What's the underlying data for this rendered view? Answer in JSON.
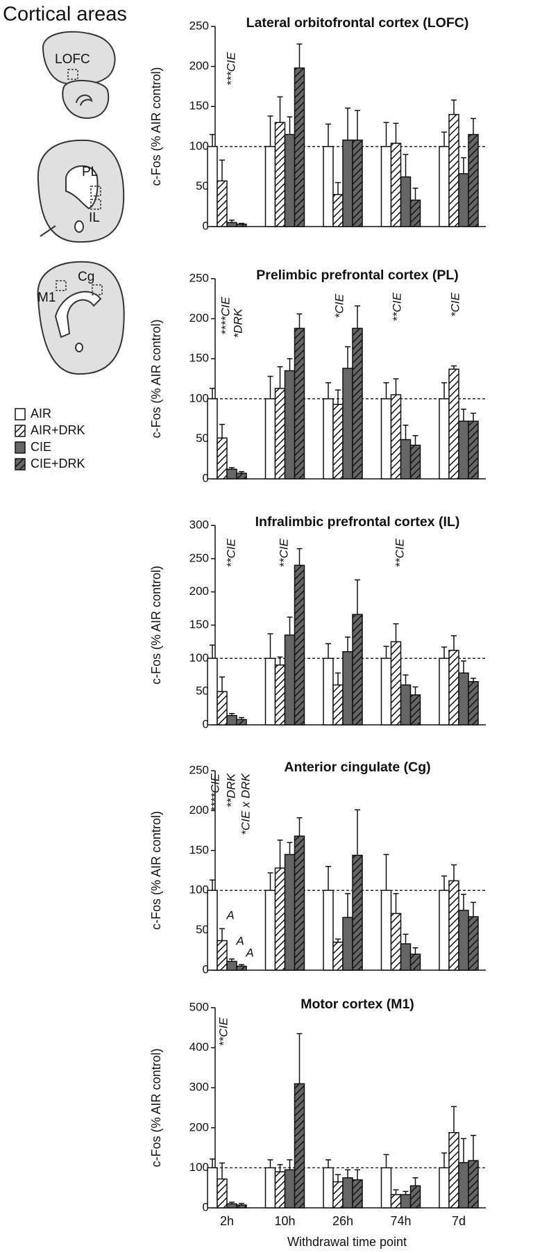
{
  "title": "Cortical areas",
  "diagram_labels": [
    "LOFC",
    "PL",
    "IL",
    "Cg",
    "M1"
  ],
  "chart_data": [
    {
      "type": "bar",
      "title": "Lateral orbitofrontal cortex (LOFC)",
      "ylabel": "c-Fos (% AIR control)",
      "ylim": [
        0,
        250
      ],
      "yticks": [
        0,
        50,
        100,
        150,
        200,
        250
      ],
      "refline": 100,
      "series": [
        {
          "name": "AIR",
          "color": "#ffffff",
          "hatch": false,
          "values": [
            100,
            100,
            100,
            100,
            100
          ],
          "errors": [
            15,
            38,
            28,
            30,
            18
          ]
        },
        {
          "name": "AIR+DRK",
          "color": "#ffffff",
          "hatch": true,
          "values": [
            57,
            130,
            40,
            104,
            140
          ],
          "errors": [
            26,
            32,
            15,
            25,
            18
          ]
        },
        {
          "name": "CIE",
          "color": "#666666",
          "hatch": false,
          "values": [
            5,
            115,
            108,
            62,
            66
          ],
          "errors": [
            3,
            22,
            40,
            28,
            20
          ]
        },
        {
          "name": "CIE+DRK",
          "color": "#666666",
          "hatch": true,
          "values": [
            3,
            198,
            108,
            33,
            115
          ],
          "errors": [
            1,
            30,
            37,
            15,
            20
          ]
        }
      ],
      "annotations": [
        "***CIE"
      ]
    },
    {
      "type": "bar",
      "title": "Prelimbic prefrontal cortex (PL)",
      "ylabel": "c-Fos (% AIR control)",
      "ylim": [
        0,
        250
      ],
      "yticks": [
        0,
        50,
        100,
        150,
        200,
        250
      ],
      "refline": 100,
      "series": [
        {
          "color": "#ffffff",
          "hatch": false,
          "values": [
            100,
            100,
            100,
            100,
            100
          ],
          "errors": [
            13,
            28,
            20,
            20,
            20
          ]
        },
        {
          "color": "#ffffff",
          "hatch": true,
          "values": [
            51,
            113,
            93,
            105,
            137
          ],
          "errors": [
            17,
            27,
            18,
            20,
            4
          ]
        },
        {
          "color": "#666666",
          "hatch": false,
          "values": [
            12,
            135,
            138,
            49,
            72
          ],
          "errors": [
            2,
            15,
            27,
            18,
            15
          ]
        },
        {
          "color": "#666666",
          "hatch": true,
          "values": [
            7,
            188,
            188,
            42,
            72
          ],
          "errors": [
            2,
            18,
            28,
            12,
            10
          ]
        }
      ],
      "annotations": [
        "****CIE",
        "*DRK",
        "*CIE",
        "**CIE",
        "*CIE"
      ]
    },
    {
      "type": "bar",
      "title": "Infralimbic prefrontal cortex (IL)",
      "ylabel": "c-Fos (% AIR control)",
      "ylim": [
        0,
        300
      ],
      "yticks": [
        0,
        50,
        100,
        150,
        200,
        250,
        300
      ],
      "refline": 100,
      "series": [
        {
          "color": "#ffffff",
          "hatch": false,
          "values": [
            100,
            100,
            100,
            100,
            100
          ],
          "errors": [
            20,
            37,
            22,
            18,
            17
          ]
        },
        {
          "color": "#ffffff",
          "hatch": true,
          "values": [
            50,
            90,
            60,
            125,
            112
          ],
          "errors": [
            22,
            12,
            18,
            27,
            22
          ]
        },
        {
          "color": "#666666",
          "hatch": false,
          "values": [
            14,
            135,
            110,
            60,
            78
          ],
          "errors": [
            3,
            27,
            22,
            15,
            18
          ]
        },
        {
          "color": "#666666",
          "hatch": true,
          "values": [
            8,
            240,
            166,
            45,
            65
          ],
          "errors": [
            3,
            25,
            52,
            12,
            5
          ]
        }
      ],
      "annotations": [
        "**CIE",
        "**CIE",
        "**CIE"
      ]
    },
    {
      "type": "bar",
      "title": "Anterior cingulate (Cg)",
      "ylabel": "c-Fos (% AIR control)",
      "ylim": [
        0,
        250
      ],
      "yticks": [
        0,
        50,
        100,
        150,
        200,
        250
      ],
      "refline": 100,
      "series": [
        {
          "color": "#ffffff",
          "hatch": false,
          "values": [
            100,
            100,
            100,
            100,
            100
          ],
          "errors": [
            13,
            22,
            30,
            45,
            18
          ]
        },
        {
          "color": "#ffffff",
          "hatch": true,
          "values": [
            37,
            128,
            35,
            71,
            112
          ],
          "errors": [
            15,
            35,
            4,
            25,
            20
          ]
        },
        {
          "color": "#666666",
          "hatch": false,
          "values": [
            11,
            145,
            66,
            33,
            75
          ],
          "errors": [
            3,
            15,
            30,
            12,
            20
          ]
        },
        {
          "color": "#666666",
          "hatch": true,
          "values": [
            5,
            168,
            144,
            20,
            67
          ],
          "errors": [
            2,
            23,
            57,
            8,
            18
          ]
        }
      ],
      "annotations": [
        "****CIE",
        "**DRK",
        "*CIE x DRK",
        "A",
        "A",
        "A"
      ]
    },
    {
      "type": "bar",
      "title": "Motor cortex (M1)",
      "ylabel": "c-Fos (% AIR control)",
      "xlabel": "Withdrawal time point",
      "categories": [
        "2h",
        "10h",
        "26h",
        "74h",
        "7d"
      ],
      "ylim": [
        0,
        500
      ],
      "yticks": [
        0,
        100,
        200,
        300,
        400,
        500
      ],
      "refline": 100,
      "series": [
        {
          "color": "#ffffff",
          "hatch": false,
          "values": [
            100,
            100,
            100,
            100,
            100
          ],
          "errors": [
            22,
            20,
            20,
            33,
            37
          ]
        },
        {
          "color": "#ffffff",
          "hatch": true,
          "values": [
            72,
            90,
            65,
            33,
            188
          ],
          "errors": [
            40,
            18,
            18,
            12,
            65
          ]
        },
        {
          "color": "#666666",
          "hatch": false,
          "values": [
            10,
            95,
            75,
            33,
            113
          ],
          "errors": [
            4,
            25,
            20,
            8,
            60
          ]
        },
        {
          "color": "#666666",
          "hatch": true,
          "values": [
            7,
            310,
            70,
            55,
            118
          ],
          "errors": [
            4,
            125,
            25,
            20,
            63
          ]
        }
      ],
      "annotations": [
        "**CIE"
      ]
    }
  ]
}
